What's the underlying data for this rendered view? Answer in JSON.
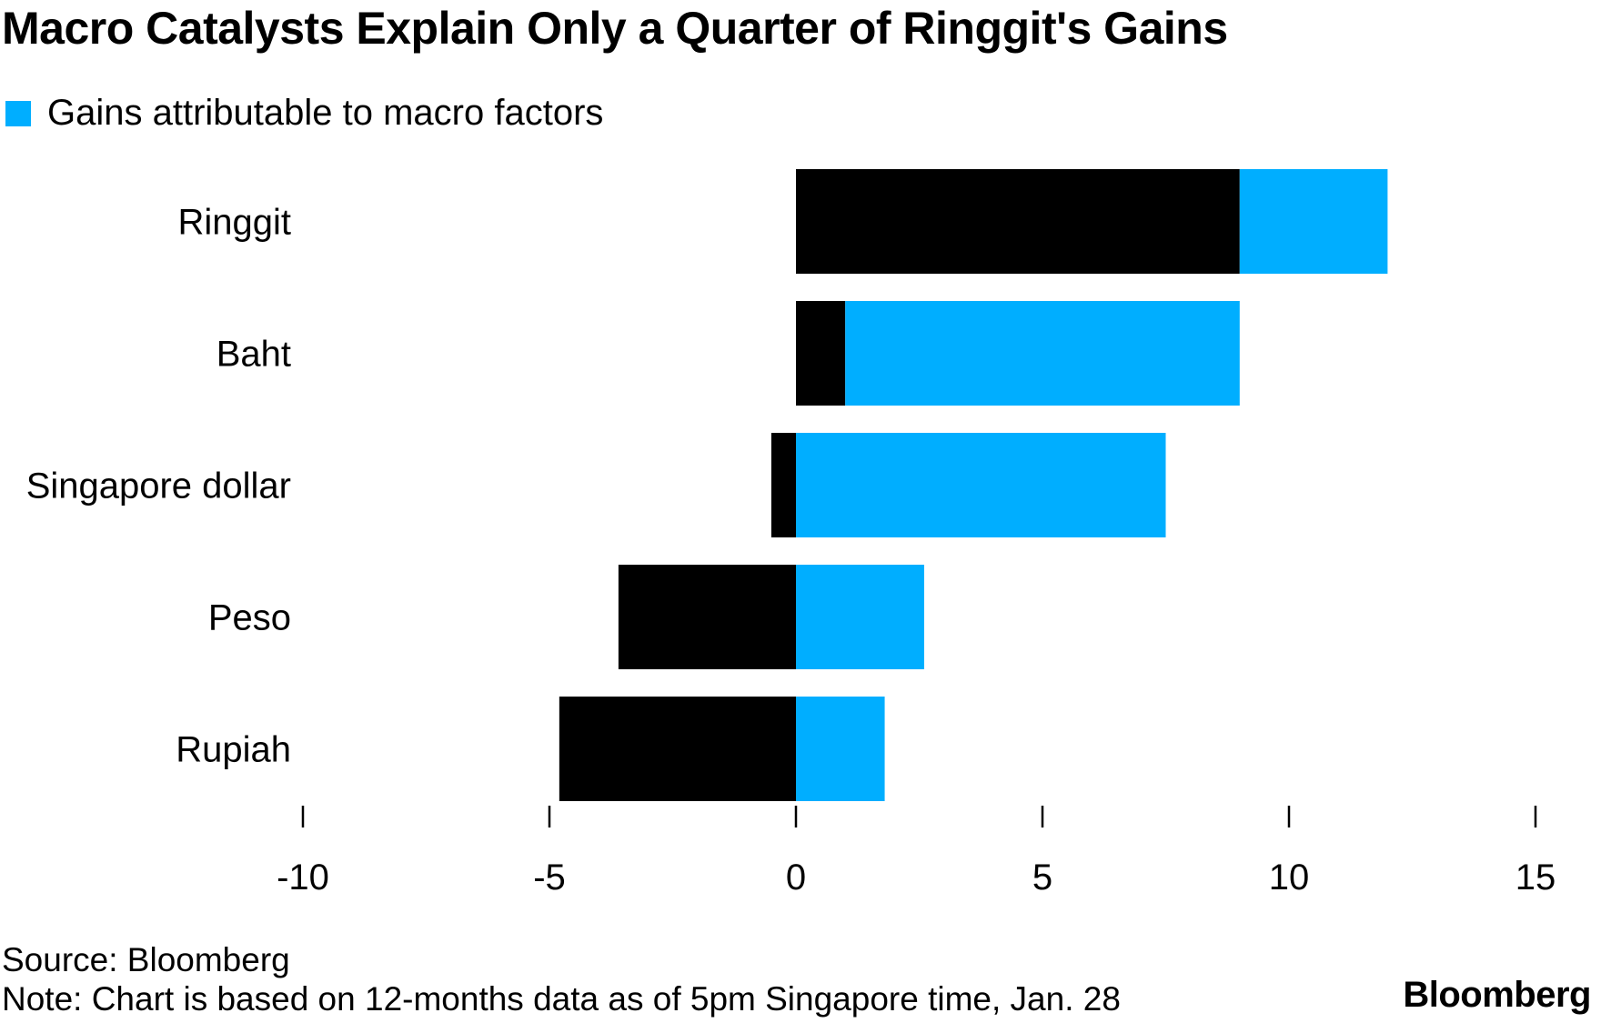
{
  "colors": {
    "other": "#000000",
    "macro": "#00aeff",
    "background": "#ffffff"
  },
  "chart_data": {
    "type": "bar",
    "orientation": "horizontal",
    "stacked": true,
    "title": "Macro Catalysts Explain Only a Quarter of Ringgit's Gains",
    "categories": [
      "Ringgit",
      "Baht",
      "Singapore dollar",
      "Peso",
      "Rupiah"
    ],
    "series": [
      {
        "values": [
          9.0,
          1.0,
          -0.5,
          -3.6,
          -4.8
        ],
        "color_key": "other"
      },
      {
        "name": "Gains attributable to macro factors",
        "values": [
          3.0,
          8.0,
          7.5,
          2.6,
          1.8
        ],
        "color_key": "macro"
      }
    ],
    "xlim": [
      -10,
      15
    ],
    "xticks": [
      -10,
      -5,
      0,
      5,
      10,
      15
    ],
    "xlabel": "",
    "ylabel": "",
    "grid": false,
    "legend": "top-left"
  },
  "footer": {
    "source": "Source: Bloomberg",
    "note": "Note: Chart is based on 12-months data as of 5pm Singapore time, Jan. 28",
    "brand": "Bloomberg"
  }
}
